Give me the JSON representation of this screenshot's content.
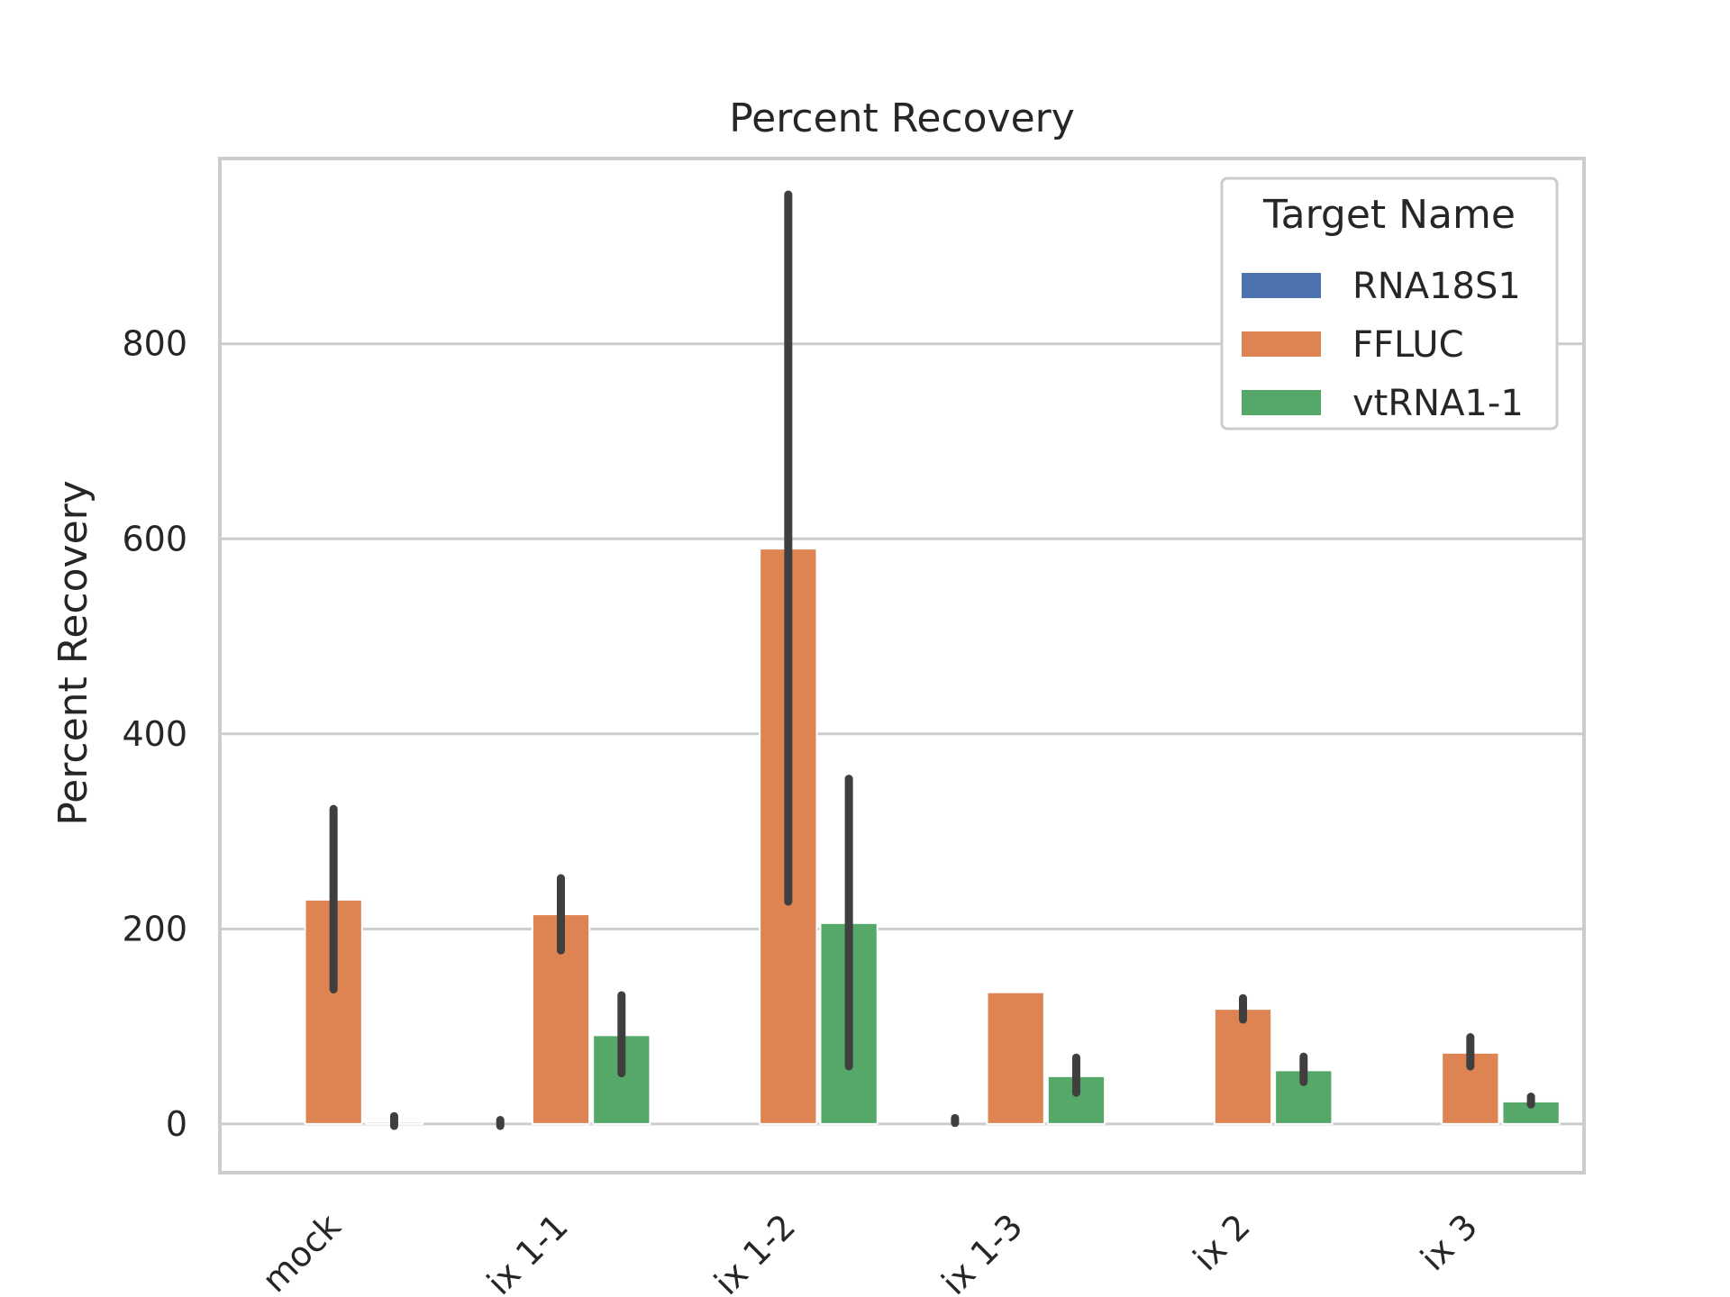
{
  "chart_data": {
    "type": "bar",
    "title": "Percent Recovery",
    "xlabel": "",
    "ylabel": "Percent Recovery",
    "ylim": [
      -50,
      990
    ],
    "yticks": [
      0,
      200,
      400,
      600,
      800
    ],
    "grid": true,
    "categories": [
      "mock",
      "ix 1-1",
      "ix 1-2",
      "ix 1-3",
      "ix 2",
      "ix 3"
    ],
    "legend": {
      "title": "Target Name",
      "placement": "top-right"
    },
    "series": [
      {
        "name": "RNA18S1",
        "color": "#4c72b0",
        "values": [
          0,
          0,
          0,
          0,
          0,
          0
        ],
        "err_low": [
          null,
          null,
          null,
          null,
          null,
          null
        ],
        "err_high": [
          null,
          null,
          null,
          null,
          null,
          null
        ]
      },
      {
        "name": "FFLUC",
        "color": "#dd8452",
        "values": [
          230,
          215,
          590,
          135,
          118,
          73
        ],
        "err_low": [
          138,
          178,
          228,
          null,
          107,
          59
        ],
        "err_high": [
          323,
          252,
          953,
          null,
          129,
          89
        ]
      },
      {
        "name": "vtRNA1-1",
        "color": "#55a868",
        "values": [
          2,
          91,
          206,
          49,
          55,
          23
        ],
        "err_low": [
          -2,
          52,
          59,
          32,
          43,
          20
        ],
        "err_high": [
          8,
          132,
          354,
          68,
          69,
          28
        ]
      }
    ],
    "extra_marks": [
      {
        "category": "ix 1-1",
        "series": "RNA18S1",
        "err_low": -2,
        "err_high": 4
      },
      {
        "category": "ix 1-3",
        "series": "RNA18S1",
        "err_low": 1,
        "err_high": 6
      }
    ]
  }
}
